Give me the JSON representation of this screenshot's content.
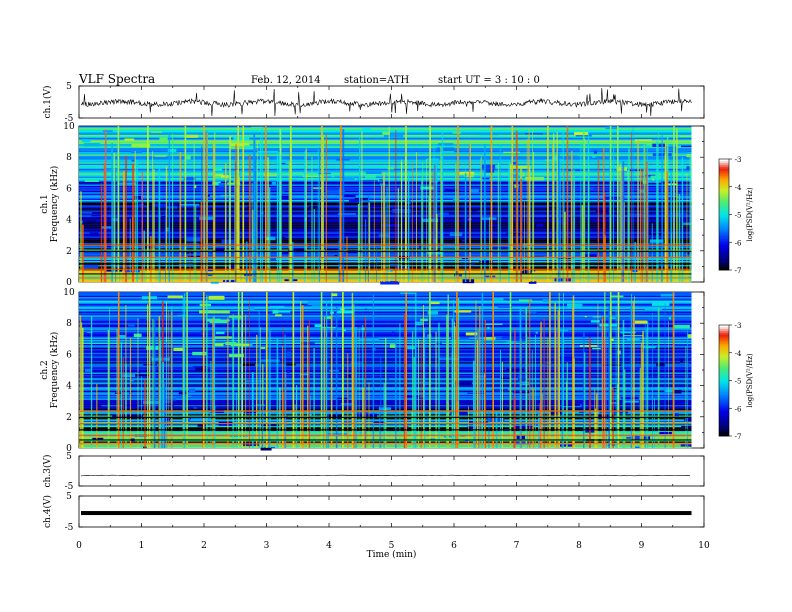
{
  "header": {
    "title": "VLF  Spectra",
    "date": "Feb. 12, 2014",
    "station": "station=ATH",
    "start_ut": "start  UT  =   3  : 10 : 0"
  },
  "chart_data": [
    {
      "type": "line",
      "panel": "ch1-waveform",
      "ylabel": "ch.1(V)",
      "ylim": [
        -5,
        5
      ],
      "y_ticks": [
        "5",
        "-5"
      ],
      "xlim": [
        0,
        10
      ],
      "data_end_x": 9.8
    },
    {
      "type": "heatmap",
      "panel": "ch1-spectrogram",
      "ylabel_channel": "ch.1",
      "ylabel": "Frequency  (kHz)",
      "ylim": [
        0,
        10
      ],
      "y_ticks": [
        "0",
        "2",
        "4",
        "6",
        "8",
        "10"
      ],
      "xlim": [
        0,
        10
      ],
      "data_end_x": 9.8,
      "colorbar": {
        "label": "log(PSD(V²/Hz)",
        "ticks": [
          "-7",
          "-6",
          "-5",
          "-4",
          "-3"
        ],
        "range": [
          -7,
          -3
        ]
      },
      "approx_band_levels_log_psd": [
        {
          "f_kHz": [
            0,
            0.8
          ],
          "level": -4.2
        },
        {
          "f_kHz": [
            0.8,
            2.5
          ],
          "level": -5.4
        },
        {
          "f_kHz": [
            2.5,
            5.2
          ],
          "level": -6.4
        },
        {
          "f_kHz": [
            5.2,
            6.5
          ],
          "level": -5.7
        },
        {
          "f_kHz": [
            6.5,
            10
          ],
          "level": -5.0
        }
      ],
      "approx_event_times_min": [
        0.6,
        1.1,
        1.7,
        2.0,
        2.55,
        2.62,
        3.0,
        3.4,
        3.85,
        4.2,
        5.2,
        5.6,
        6.05,
        6.6,
        6.9,
        7.5,
        8.5,
        8.6,
        9.5
      ]
    },
    {
      "type": "heatmap",
      "panel": "ch2-spectrogram",
      "ylabel_channel": "ch.2",
      "ylabel": "Frequency  (kHz)",
      "ylim": [
        0,
        10
      ],
      "y_ticks": [
        "0",
        "2",
        "4",
        "6",
        "8",
        "10"
      ],
      "xlim": [
        0,
        10
      ],
      "data_end_x": 9.8,
      "colorbar": {
        "label": "log(PSD(V²/Hz)",
        "ticks": [
          "-7",
          "-6",
          "-5",
          "-4",
          "-3"
        ],
        "range": [
          -7,
          -3
        ]
      },
      "approx_band_levels_log_psd": [
        {
          "f_kHz": [
            0,
            0.8
          ],
          "level": -4.6
        },
        {
          "f_kHz": [
            0.8,
            2.5
          ],
          "level": -5.1
        },
        {
          "f_kHz": [
            2.5,
            5.2
          ],
          "level": -5.9
        },
        {
          "f_kHz": [
            5.2,
            6.5
          ],
          "level": -6.1
        },
        {
          "f_kHz": [
            6.5,
            10
          ],
          "level": -5.6
        }
      ],
      "approx_event_times_min": [
        0.6,
        1.1,
        1.7,
        2.0,
        2.55,
        2.62,
        3.0,
        3.4,
        3.85,
        4.2,
        5.2,
        5.6,
        6.05,
        6.6,
        6.9,
        7.5,
        8.5,
        8.6,
        9.5
      ]
    },
    {
      "type": "line",
      "panel": "ch3-waveform",
      "ylabel": "ch.3(V)",
      "ylim": [
        -5,
        5
      ],
      "y_ticks": [
        "5",
        "-5"
      ],
      "xlim": [
        0,
        10
      ],
      "data_end_x": 9.8,
      "level_V": -1.5
    },
    {
      "type": "line",
      "panel": "ch4-waveform",
      "ylabel": "ch.4(V)",
      "ylim": [
        -5,
        5
      ],
      "y_ticks": [
        "5",
        "-5"
      ],
      "xlim": [
        0,
        10
      ],
      "data_end_x": 9.8,
      "level_V": -0.5,
      "xlabel": "Time  (min)",
      "x_ticks": [
        "0",
        "1",
        "2",
        "3",
        "4",
        "5",
        "6",
        "7",
        "8",
        "9",
        "10"
      ]
    }
  ]
}
